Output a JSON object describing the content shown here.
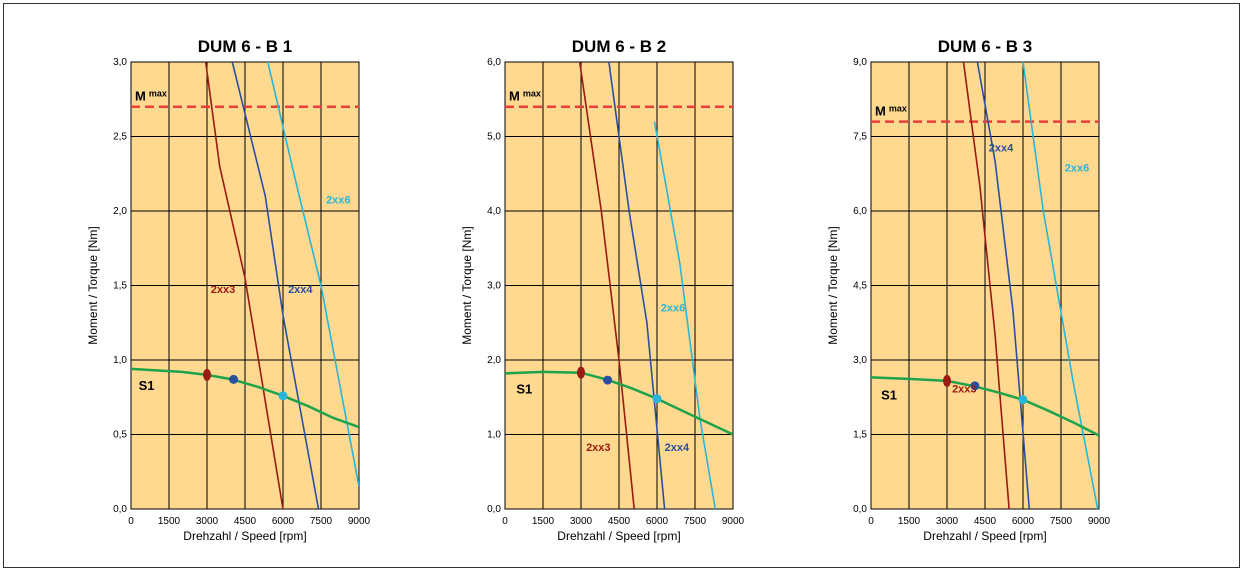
{
  "colors": {
    "plot_bg": "#FFD98F",
    "grid": "#000000",
    "mmax_line": "#E8403A",
    "s1": "#1FA34A",
    "2xx3": "#9A1B12",
    "2xx4": "#2A4FA0",
    "2xx6": "#29B6D8"
  },
  "chart_data": [
    {
      "type": "line",
      "title": "DUM 6 - B 1",
      "xlabel": "Drehzahl / Speed  [rpm]",
      "ylabel": "Moment / Torque  [Nm]",
      "xlim": [
        0,
        9000
      ],
      "ylim": [
        0,
        3.0
      ],
      "x_ticks": [
        0,
        1500,
        3000,
        4500,
        6000,
        7500,
        9000
      ],
      "x_tick_labels": [
        "0",
        "1500",
        "3000",
        "4500",
        "6000",
        "7500",
        "9000"
      ],
      "y_ticks": [
        0,
        0.5,
        1.0,
        1.5,
        2.0,
        2.5,
        3.0
      ],
      "y_tick_labels": [
        "0,0",
        "0,5",
        "1,0",
        "1,5",
        "2,0",
        "2,5",
        "3,0"
      ],
      "grid": true,
      "mmax": {
        "label": "M",
        "sub": "max",
        "value": 2.7
      },
      "s1": {
        "label": "S1",
        "points": [
          [
            0,
            0.94
          ],
          [
            1000,
            0.93
          ],
          [
            2000,
            0.92
          ],
          [
            3000,
            0.9
          ],
          [
            4000,
            0.87
          ],
          [
            5000,
            0.82
          ],
          [
            6000,
            0.76
          ],
          [
            7000,
            0.69
          ],
          [
            8000,
            0.61
          ],
          [
            9000,
            0.55
          ]
        ],
        "label_at": [
          300,
          0.8
        ]
      },
      "series": [
        {
          "name": "2xx3",
          "color_key": "2xx3",
          "points": [
            [
              2950,
              3.0
            ],
            [
              3500,
              2.3
            ],
            [
              4500,
              1.55
            ],
            [
              6000,
              0.0
            ]
          ],
          "label_at": [
            3150,
            1.45
          ]
        },
        {
          "name": "2xx4",
          "color_key": "2xx4",
          "points": [
            [
              4000,
              3.0
            ],
            [
              5300,
              2.1
            ],
            [
              6000,
              1.3
            ],
            [
              7400,
              0.0
            ]
          ],
          "label_at": [
            6200,
            1.45
          ]
        },
        {
          "name": "2xx6",
          "color_key": "2xx6",
          "points": [
            [
              5400,
              3.0
            ],
            [
              6500,
              2.2
            ],
            [
              7500,
              1.5
            ],
            [
              9000,
              0.15
            ]
          ],
          "label_at": [
            7700,
            2.05
          ]
        }
      ],
      "markers": [
        {
          "x": 3000,
          "y": 0.9,
          "color_key": "2xx3",
          "shape": "ellipse"
        },
        {
          "x": 4050,
          "y": 0.87,
          "color_key": "2xx4",
          "shape": "circle"
        },
        {
          "x": 6000,
          "y": 0.76,
          "color_key": "2xx6",
          "shape": "circle"
        }
      ]
    },
    {
      "type": "line",
      "title": "DUM 6 - B 2",
      "xlabel": "Drehzahl / Speed  [rpm]",
      "ylabel": "Moment / Torque  [Nm]",
      "xlim": [
        0,
        9000
      ],
      "ylim": [
        0,
        6.0
      ],
      "x_ticks": [
        0,
        1500,
        3000,
        4500,
        6000,
        7500,
        9000
      ],
      "x_tick_labels": [
        "0",
        "1500",
        "3000",
        "4500",
        "6000",
        "7500",
        "9000"
      ],
      "y_ticks": [
        0,
        1.0,
        2.0,
        3.0,
        4.0,
        5.0,
        6.0
      ],
      "y_tick_labels": [
        "0,0",
        "1,0",
        "2,0",
        "3,0",
        "4,0",
        "5,0",
        "6,0"
      ],
      "grid": true,
      "mmax": {
        "label": "M",
        "sub": "max",
        "value": 5.4
      },
      "s1": {
        "label": "S1",
        "points": [
          [
            0,
            1.82
          ],
          [
            1500,
            1.84
          ],
          [
            3000,
            1.83
          ],
          [
            4000,
            1.74
          ],
          [
            5000,
            1.62
          ],
          [
            6000,
            1.48
          ],
          [
            7000,
            1.32
          ],
          [
            8000,
            1.16
          ],
          [
            9000,
            1.0
          ]
        ],
        "label_at": [
          450,
          1.55
        ]
      },
      "series": [
        {
          "name": "2xx3",
          "color_key": "2xx3",
          "points": [
            [
              2950,
              6.0
            ],
            [
              3800,
              4.0
            ],
            [
              4500,
              2.0
            ],
            [
              5100,
              0.0
            ]
          ],
          "label_at": [
            3200,
            0.78
          ]
        },
        {
          "name": "2xx4",
          "color_key": "2xx4",
          "points": [
            [
              4100,
              6.0
            ],
            [
              4900,
              4.0
            ],
            [
              5600,
              2.5
            ],
            [
              6300,
              0.0
            ]
          ],
          "label_at": [
            6300,
            0.78
          ]
        },
        {
          "name": "2xx6",
          "color_key": "2xx6",
          "points": [
            [
              5900,
              5.2
            ],
            [
              6900,
              3.3
            ],
            [
              7700,
              1.2
            ],
            [
              8300,
              0.0
            ]
          ],
          "label_at": [
            6150,
            2.65
          ]
        }
      ],
      "markers": [
        {
          "x": 3000,
          "y": 1.83,
          "color_key": "2xx3",
          "shape": "ellipse"
        },
        {
          "x": 4050,
          "y": 1.73,
          "color_key": "2xx4",
          "shape": "circle"
        },
        {
          "x": 6000,
          "y": 1.48,
          "color_key": "2xx6",
          "shape": "circle"
        }
      ]
    },
    {
      "type": "line",
      "title": "DUM 6 - B 3",
      "xlabel": "Drehzahl / Speed  [rpm]",
      "ylabel": "Moment / Torque  [Nm]",
      "xlim": [
        0,
        9000
      ],
      "ylim": [
        0,
        9.0
      ],
      "x_ticks": [
        0,
        1500,
        3000,
        4500,
        6000,
        7500,
        9000
      ],
      "x_tick_labels": [
        "0",
        "1500",
        "3000",
        "4500",
        "6000",
        "7500",
        "9000"
      ],
      "y_ticks": [
        0,
        1.5,
        3.0,
        4.5,
        6.0,
        7.5,
        9.0
      ],
      "y_tick_labels": [
        "0,0",
        "1,5",
        "3,0",
        "4,5",
        "6,0",
        "7,5",
        "9,0"
      ],
      "grid": true,
      "mmax": {
        "label": "M",
        "sub": "max",
        "value": 7.8
      },
      "s1": {
        "label": "S1",
        "points": [
          [
            0,
            2.65
          ],
          [
            1500,
            2.62
          ],
          [
            3000,
            2.58
          ],
          [
            4000,
            2.48
          ],
          [
            5000,
            2.35
          ],
          [
            6000,
            2.2
          ],
          [
            7000,
            1.98
          ],
          [
            8000,
            1.74
          ],
          [
            9000,
            1.48
          ]
        ],
        "label_at": [
          400,
          2.2
        ]
      },
      "series": [
        {
          "name": "2xx3",
          "color_key": "2xx3",
          "points": [
            [
              3650,
              9.0
            ],
            [
              4300,
              6.5
            ],
            [
              4900,
              3.5
            ],
            [
              5450,
              0.0
            ]
          ],
          "label_at": [
            3200,
            2.35
          ]
        },
        {
          "name": "2xx4",
          "color_key": "2xx4",
          "points": [
            [
              4200,
              9.0
            ],
            [
              4900,
              7.0
            ],
            [
              5600,
              4.0
            ],
            [
              6250,
              0.0
            ]
          ],
          "label_at": [
            4650,
            7.2
          ]
        },
        {
          "name": "2xx6",
          "color_key": "2xx6",
          "points": [
            [
              6000,
              9.0
            ],
            [
              6800,
              6.0
            ],
            [
              8000,
              2.5
            ],
            [
              8950,
              0.0
            ]
          ],
          "label_at": [
            7650,
            6.8
          ]
        }
      ],
      "markers": [
        {
          "x": 3000,
          "y": 2.58,
          "color_key": "2xx3",
          "shape": "ellipse"
        },
        {
          "x": 4100,
          "y": 2.48,
          "color_key": "2xx4",
          "shape": "circle"
        },
        {
          "x": 6000,
          "y": 2.2,
          "color_key": "2xx6",
          "shape": "circle"
        }
      ]
    }
  ]
}
